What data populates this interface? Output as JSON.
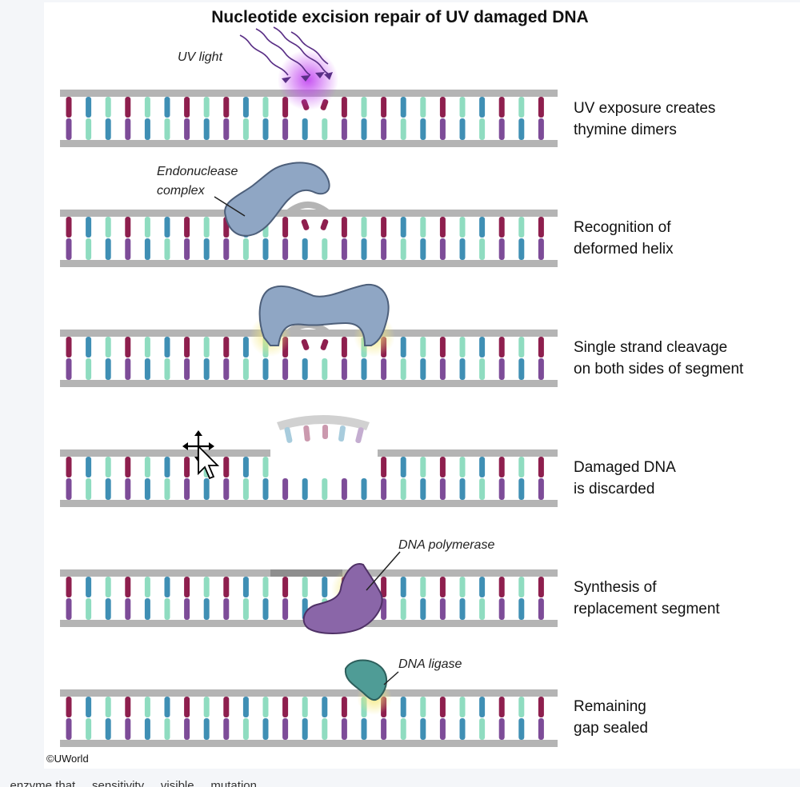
{
  "title": "Nucleotide excision repair of UV damaged DNA",
  "steps": [
    {
      "line1": "UV exposure creates",
      "line2": "thymine dimers"
    },
    {
      "line1": "Recognition of",
      "line2": "deformed helix"
    },
    {
      "line1": "Single strand cleavage",
      "line2": "on both sides of segment"
    },
    {
      "line1": "Damaged DNA",
      "line2": "is discarded"
    },
    {
      "line1": "Synthesis of",
      "line2": "replacement segment"
    },
    {
      "line1": "Remaining",
      "line2": "gap sealed"
    }
  ],
  "callouts": {
    "uv_light": "UV light",
    "endonuclease_line1": "Endonuclease",
    "endonuclease_line2": "complex",
    "polymerase": "DNA polymerase",
    "ligase": "DNA ligase"
  },
  "copyright": "©UWorld",
  "caption_fragment": "...enzyme that ... sensitivity ... visible ... mutation ... ... ...",
  "colors": {
    "backbone": "#b4b4b4",
    "base_maroon": "#8e1f4e",
    "base_purple": "#7d4c98",
    "base_teal": "#3f8fb4",
    "base_mint": "#8fdcc0",
    "endonuclease": "#8fa6c4",
    "polymerase": "#8a66a8",
    "ligase": "#4f9c96",
    "uv_glow": "#b040e0"
  },
  "icons": [
    "uv-ray-icon",
    "move-cursor-icon"
  ]
}
